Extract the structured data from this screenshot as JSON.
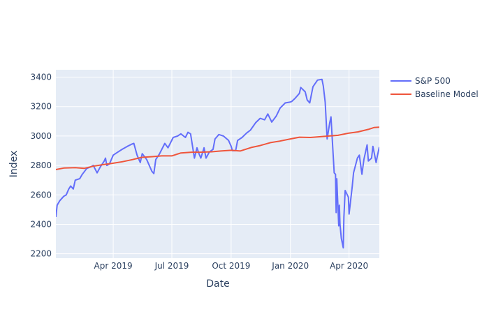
{
  "chart_data": {
    "type": "line",
    "title": "",
    "xlabel": "Date",
    "ylabel": "Index",
    "x_range": [
      "2019-01-02",
      "2020-05-18"
    ],
    "ylim": [
      2170,
      3450
    ],
    "x_ticks": [
      {
        "date": "2019-04-01",
        "label": "Apr 2019"
      },
      {
        "date": "2019-07-01",
        "label": "Jul 2019"
      },
      {
        "date": "2019-10-01",
        "label": "Oct 2019"
      },
      {
        "date": "2020-01-01",
        "label": "Jan 2020"
      },
      {
        "date": "2020-04-01",
        "label": "Apr 2020"
      }
    ],
    "y_ticks": [
      2200,
      2400,
      2600,
      2800,
      3000,
      3200,
      3400
    ],
    "grid": true,
    "legend_position": "top-right",
    "colors": {
      "plot_bg": "#E5ECF6",
      "grid": "#ffffff",
      "text": "#2a3f5f"
    },
    "series": [
      {
        "name": "S&P 500",
        "color": "#636EFA",
        "points": [
          [
            "2019-01-02",
            2450
          ],
          [
            "2019-01-04",
            2530
          ],
          [
            "2019-01-08",
            2560
          ],
          [
            "2019-01-14",
            2590
          ],
          [
            "2019-01-18",
            2600
          ],
          [
            "2019-01-22",
            2640
          ],
          [
            "2019-01-25",
            2660
          ],
          [
            "2019-01-29",
            2640
          ],
          [
            "2019-02-01",
            2700
          ],
          [
            "2019-02-08",
            2710
          ],
          [
            "2019-02-12",
            2740
          ],
          [
            "2019-02-19",
            2780
          ],
          [
            "2019-02-25",
            2790
          ],
          [
            "2019-03-01",
            2800
          ],
          [
            "2019-03-07",
            2750
          ],
          [
            "2019-03-12",
            2790
          ],
          [
            "2019-03-18",
            2830
          ],
          [
            "2019-03-20",
            2850
          ],
          [
            "2019-03-22",
            2800
          ],
          [
            "2019-03-26",
            2810
          ],
          [
            "2019-04-01",
            2870
          ],
          [
            "2019-04-08",
            2890
          ],
          [
            "2019-04-15",
            2910
          ],
          [
            "2019-04-23",
            2930
          ],
          [
            "2019-04-30",
            2945
          ],
          [
            "2019-05-03",
            2950
          ],
          [
            "2019-05-08",
            2870
          ],
          [
            "2019-05-13",
            2820
          ],
          [
            "2019-05-16",
            2880
          ],
          [
            "2019-05-23",
            2840
          ],
          [
            "2019-05-31",
            2760
          ],
          [
            "2019-06-03",
            2745
          ],
          [
            "2019-06-06",
            2840
          ],
          [
            "2019-06-12",
            2880
          ],
          [
            "2019-06-20",
            2950
          ],
          [
            "2019-06-25",
            2920
          ],
          [
            "2019-07-03",
            2990
          ],
          [
            "2019-07-10",
            3000
          ],
          [
            "2019-07-15",
            3015
          ],
          [
            "2019-07-22",
            2990
          ],
          [
            "2019-07-26",
            3025
          ],
          [
            "2019-07-30",
            3015
          ],
          [
            "2019-08-05",
            2850
          ],
          [
            "2019-08-09",
            2920
          ],
          [
            "2019-08-12",
            2880
          ],
          [
            "2019-08-15",
            2850
          ],
          [
            "2019-08-20",
            2920
          ],
          [
            "2019-08-23",
            2850
          ],
          [
            "2019-08-28",
            2890
          ],
          [
            "2019-09-03",
            2910
          ],
          [
            "2019-09-06",
            2980
          ],
          [
            "2019-09-12",
            3010
          ],
          [
            "2019-09-19",
            3000
          ],
          [
            "2019-09-27",
            2970
          ],
          [
            "2019-10-01",
            2930
          ],
          [
            "2019-10-03",
            2900
          ],
          [
            "2019-10-08",
            2900
          ],
          [
            "2019-10-11",
            2970
          ],
          [
            "2019-10-18",
            2990
          ],
          [
            "2019-10-25",
            3020
          ],
          [
            "2019-10-31",
            3040
          ],
          [
            "2019-11-08",
            3090
          ],
          [
            "2019-11-15",
            3120
          ],
          [
            "2019-11-22",
            3110
          ],
          [
            "2019-11-27",
            3150
          ],
          [
            "2019-12-03",
            3095
          ],
          [
            "2019-12-10",
            3135
          ],
          [
            "2019-12-16",
            3190
          ],
          [
            "2019-12-24",
            3225
          ],
          [
            "2019-12-31",
            3230
          ],
          [
            "2020-01-03",
            3235
          ],
          [
            "2020-01-08",
            3255
          ],
          [
            "2020-01-15",
            3290
          ],
          [
            "2020-01-17",
            3330
          ],
          [
            "2020-01-24",
            3300
          ],
          [
            "2020-01-27",
            3245
          ],
          [
            "2020-01-31",
            3225
          ],
          [
            "2020-02-05",
            3335
          ],
          [
            "2020-02-12",
            3380
          ],
          [
            "2020-02-19",
            3385
          ],
          [
            "2020-02-21",
            3340
          ],
          [
            "2020-02-24",
            3230
          ],
          [
            "2020-02-27",
            2980
          ],
          [
            "2020-03-02",
            3090
          ],
          [
            "2020-03-04",
            3130
          ],
          [
            "2020-03-09",
            2750
          ],
          [
            "2020-03-11",
            2740
          ],
          [
            "2020-03-12",
            2480
          ],
          [
            "2020-03-13",
            2710
          ],
          [
            "2020-03-16",
            2390
          ],
          [
            "2020-03-17",
            2530
          ],
          [
            "2020-03-18",
            2400
          ],
          [
            "2020-03-20",
            2305
          ],
          [
            "2020-03-23",
            2240
          ],
          [
            "2020-03-24",
            2450
          ],
          [
            "2020-03-26",
            2630
          ],
          [
            "2020-03-31",
            2585
          ],
          [
            "2020-04-01",
            2470
          ],
          [
            "2020-04-06",
            2660
          ],
          [
            "2020-04-08",
            2750
          ],
          [
            "2020-04-14",
            2850
          ],
          [
            "2020-04-17",
            2870
          ],
          [
            "2020-04-21",
            2740
          ],
          [
            "2020-04-24",
            2840
          ],
          [
            "2020-04-29",
            2940
          ],
          [
            "2020-05-01",
            2830
          ],
          [
            "2020-05-06",
            2850
          ],
          [
            "2020-05-08",
            2930
          ],
          [
            "2020-05-13",
            2820
          ],
          [
            "2020-05-15",
            2865
          ],
          [
            "2020-05-18",
            2925
          ]
        ]
      },
      {
        "name": "Baseline Model",
        "color": "#EF553B",
        "points": [
          [
            "2019-01-02",
            2772
          ],
          [
            "2019-01-15",
            2783
          ],
          [
            "2019-02-01",
            2785
          ],
          [
            "2019-02-15",
            2780
          ],
          [
            "2019-03-01",
            2795
          ],
          [
            "2019-03-15",
            2805
          ],
          [
            "2019-04-01",
            2815
          ],
          [
            "2019-04-15",
            2825
          ],
          [
            "2019-05-01",
            2840
          ],
          [
            "2019-05-15",
            2855
          ],
          [
            "2019-06-01",
            2860
          ],
          [
            "2019-06-15",
            2865
          ],
          [
            "2019-07-01",
            2865
          ],
          [
            "2019-07-15",
            2885
          ],
          [
            "2019-08-01",
            2890
          ],
          [
            "2019-08-15",
            2890
          ],
          [
            "2019-09-01",
            2893
          ],
          [
            "2019-09-15",
            2898
          ],
          [
            "2019-10-01",
            2903
          ],
          [
            "2019-10-15",
            2898
          ],
          [
            "2019-11-01",
            2922
          ],
          [
            "2019-11-15",
            2935
          ],
          [
            "2019-12-01",
            2955
          ],
          [
            "2019-12-15",
            2965
          ],
          [
            "2020-01-01",
            2980
          ],
          [
            "2020-01-15",
            2992
          ],
          [
            "2020-02-01",
            2990
          ],
          [
            "2020-02-15",
            2995
          ],
          [
            "2020-03-01",
            3000
          ],
          [
            "2020-03-15",
            3005
          ],
          [
            "2020-04-01",
            3020
          ],
          [
            "2020-04-15",
            3028
          ],
          [
            "2020-05-01",
            3045
          ],
          [
            "2020-05-10",
            3058
          ],
          [
            "2020-05-18",
            3060
          ]
        ]
      }
    ]
  }
}
